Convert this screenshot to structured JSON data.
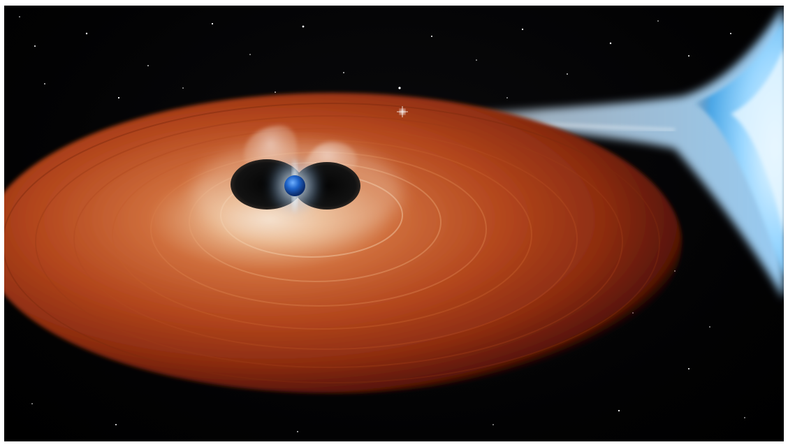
{
  "image": {
    "subject": "",
    "colors": {
      "space": "#020203",
      "disk_outer": "#6a1a08",
      "disk_mid": "#b2451c",
      "disk_inner": "#e9a87a",
      "disk_glow": "#f3d8bf",
      "star_core": "#1e63c8",
      "star_glow": "#9fd2ff",
      "companion": "#bfe6ff",
      "stream": "#d8efff"
    }
  }
}
